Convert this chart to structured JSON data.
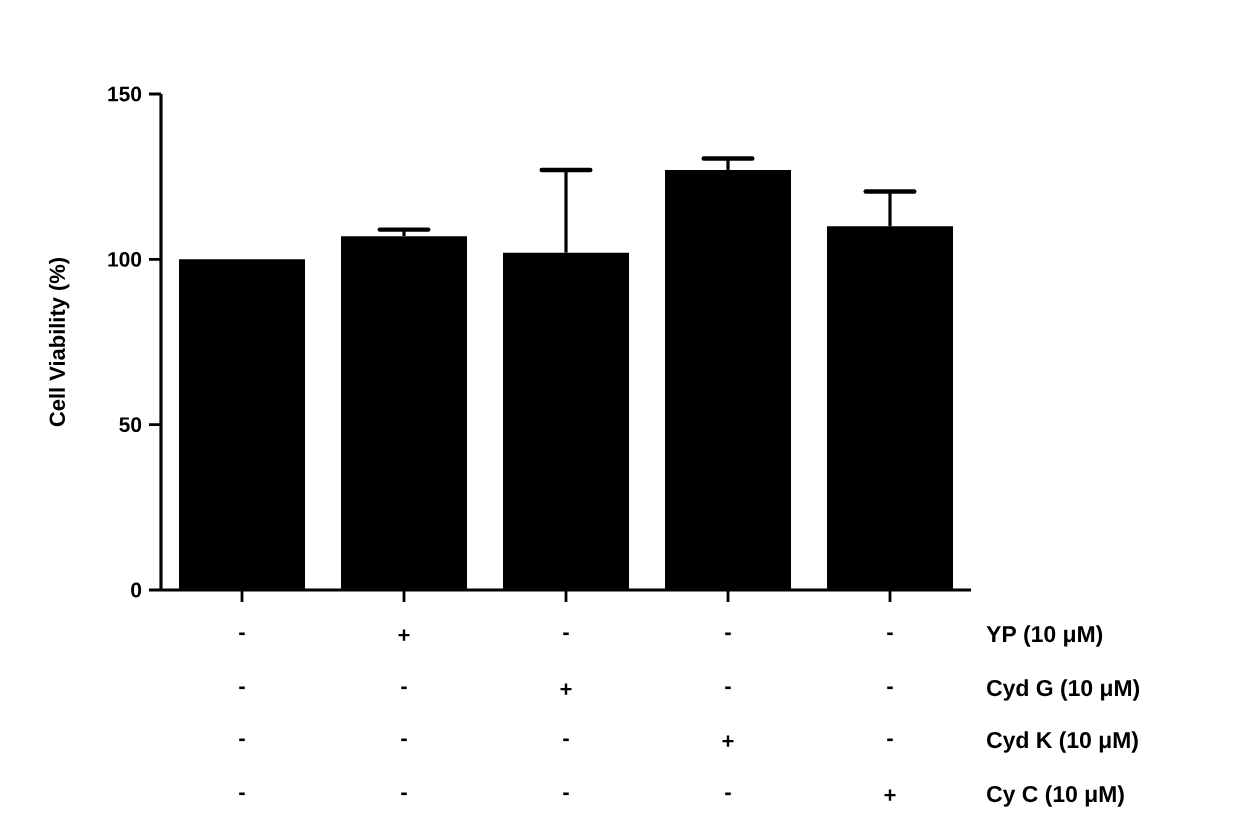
{
  "chart_data": {
    "type": "bar",
    "ylabel": "Cell Viability (%)",
    "categories": [
      null,
      null,
      null,
      null,
      null
    ],
    "values": [
      100,
      107,
      102,
      127,
      110
    ],
    "errors": [
      null,
      [
        107,
        109
      ],
      [
        102,
        127
      ],
      [
        127,
        130.5
      ],
      [
        110,
        120.5
      ]
    ],
    "color": "#000000",
    "ylim": [
      0,
      150
    ],
    "yticks": [
      0,
      50,
      100,
      150
    ],
    "grid": false,
    "annotations": [
      "-",
      "+",
      "-",
      "-",
      "-",
      "YP (10 μM)",
      "-",
      "-",
      "+",
      "-",
      "-",
      "Cyd G (10 μM)",
      "-",
      "-",
      "-",
      "+",
      "-",
      "Cyd K (10 μM)",
      "-",
      "-",
      "-",
      "-",
      "+",
      "Cy C (10 μM)"
    ]
  }
}
